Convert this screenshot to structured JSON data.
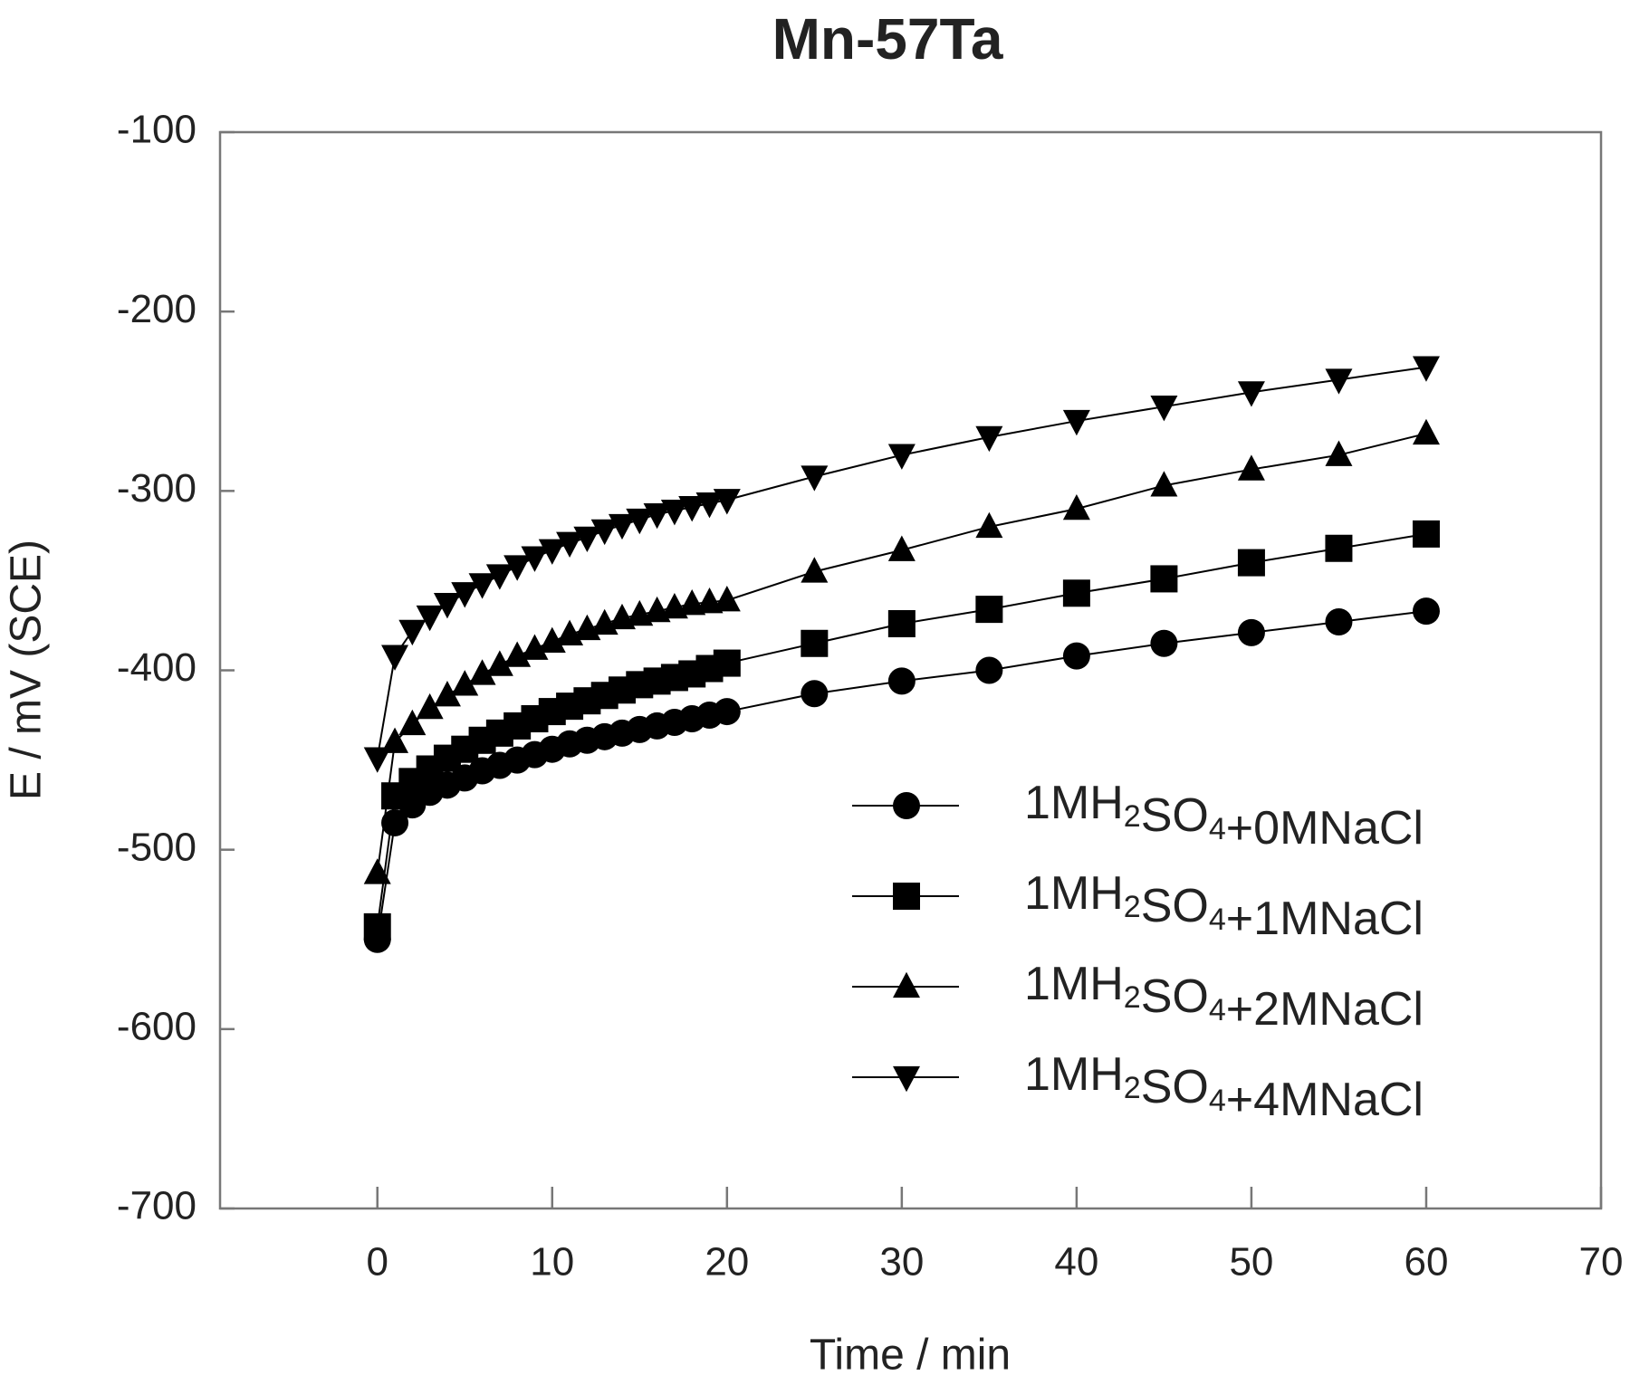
{
  "chart_data": {
    "type": "line",
    "title": "Mn-57Ta",
    "x_label": "Time / min",
    "y_label": "E / mV (SCE)",
    "x": [
      0,
      1,
      2,
      3,
      4,
      5,
      6,
      7,
      8,
      9,
      10,
      11,
      12,
      13,
      14,
      15,
      16,
      17,
      18,
      19,
      20,
      25,
      30,
      35,
      40,
      45,
      50,
      55,
      60
    ],
    "xlim": [
      -9,
      70
    ],
    "xticks": [
      0,
      10,
      20,
      30,
      40,
      50,
      60,
      70
    ],
    "ylim": [
      -700,
      -100
    ],
    "yticks": [
      -700,
      -600,
      -500,
      -400,
      -300,
      -200,
      -100
    ],
    "grid": false,
    "legend": "lower right",
    "series": [
      {
        "name": "1MH2SO4+0MNaCl",
        "color": "#000000",
        "marker": "circle",
        "values": [
          -550,
          -485,
          -475,
          -468,
          -464,
          -460,
          -456,
          -453,
          -450,
          -447,
          -444,
          -441,
          -439,
          -437,
          -435,
          -433,
          -431,
          -429,
          -427,
          -425,
          -423,
          -413,
          -406,
          -400,
          -392,
          -385,
          -379,
          -373,
          -367
        ]
      },
      {
        "name": "1MH2SO4+1MNaCl",
        "color": "#000000",
        "marker": "square",
        "values": [
          -543,
          -470,
          -462,
          -455,
          -449,
          -444,
          -439,
          -435,
          -431,
          -427,
          -423,
          -420,
          -417,
          -414,
          -411,
          -408,
          -406,
          -404,
          -402,
          -399,
          -396,
          -385,
          -374,
          -366,
          -357,
          -349,
          -340,
          -332,
          -324
        ]
      },
      {
        "name": "1MH2SO4+2MNaCl",
        "color": "#000000",
        "marker": "triangle-up",
        "values": [
          -513,
          -440,
          -430,
          -421,
          -414,
          -408,
          -402,
          -397,
          -392,
          -388,
          -384,
          -380,
          -377,
          -374,
          -371,
          -369,
          -367,
          -365,
          -363,
          -362,
          -361,
          -345,
          -333,
          -320,
          -310,
          -297,
          -288,
          -280,
          -268
        ]
      },
      {
        "name": "1MH2SO4+4MNaCl",
        "color": "#000000",
        "marker": "triangle-down",
        "values": [
          -449,
          -392,
          -378,
          -370,
          -363,
          -357,
          -352,
          -347,
          -342,
          -337,
          -333,
          -329,
          -326,
          -322,
          -319,
          -316,
          -313,
          -311,
          -309,
          -307,
          -305,
          -292,
          -280,
          -270,
          -261,
          -253,
          -245,
          -238,
          -231
        ]
      }
    ]
  }
}
